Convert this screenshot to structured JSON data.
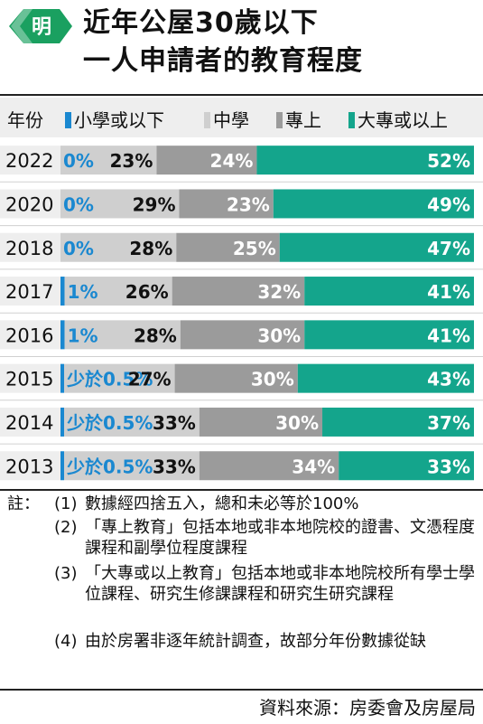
{
  "title_line1": "近年公屋30歲以下",
  "title_line2": "一人申請者的教育程度",
  "year_header": "年份",
  "colors": {
    "primary": "#1a88d0",
    "secondary": "#cfcfcf",
    "post_secondary": "#9b9b9b",
    "tertiary": "#14a58c",
    "green_badge": "#1aa060"
  },
  "chart_data": {
    "type": "bar",
    "orientation": "horizontal",
    "stacked": true,
    "categories": [
      "2022",
      "2020",
      "2018",
      "2017",
      "2016",
      "2015",
      "2014",
      "2013"
    ],
    "series": [
      {
        "name": "小學或以下",
        "values": [
          0,
          0,
          0,
          1,
          1,
          0.5,
          0.5,
          0.5
        ],
        "labels": [
          "0%",
          "0%",
          "0%",
          "1%",
          "1%",
          "少於0.5%",
          "少於0.5%",
          "少於0.5%"
        ]
      },
      {
        "name": "中學",
        "values": [
          23,
          29,
          28,
          26,
          28,
          27,
          33,
          33
        ],
        "labels": [
          "23%",
          "29%",
          "28%",
          "26%",
          "28%",
          "27%",
          "33%",
          "33%"
        ]
      },
      {
        "name": "專上",
        "values": [
          24,
          23,
          25,
          32,
          30,
          30,
          30,
          34
        ],
        "labels": [
          "24%",
          "23%",
          "25%",
          "32%",
          "30%",
          "30%",
          "30%",
          "34%"
        ]
      },
      {
        "name": "大專或以上",
        "values": [
          52,
          49,
          47,
          41,
          41,
          43,
          37,
          33
        ],
        "labels": [
          "52%",
          "49%",
          "47%",
          "41%",
          "41%",
          "43%",
          "37%",
          "33%"
        ]
      }
    ],
    "xlim": [
      0,
      100
    ],
    "legend_position": "top"
  },
  "notes": {
    "heading": "註：",
    "items": [
      {
        "num": "(1)",
        "text": "數據經四捨五入，總和未必等於100%"
      },
      {
        "num": "(2)",
        "text": "「專上教育」包括本地或非本地院校的證書、文憑程度課程和副學位程度課程"
      },
      {
        "num": "(3)",
        "text": "「大專或以上教育」包括本地或非本地院校所有學士學位課程、研究生修課課程和研究生研究課程"
      },
      {
        "num": "(4)",
        "text": "由於房署非逐年統計調查，故部分年份數據從缺"
      }
    ]
  },
  "source": "資料來源：房委會及房屋局"
}
